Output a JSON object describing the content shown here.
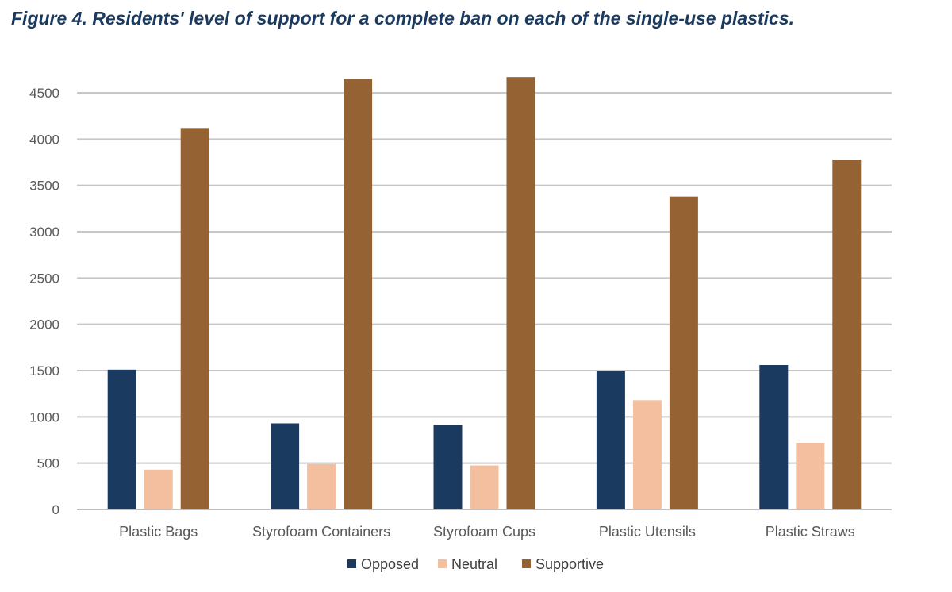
{
  "figure": {
    "title": "Figure 4. Residents' level of support for a complete ban on each of the single-use plastics."
  },
  "chart_data": {
    "type": "bar",
    "title": "Figure 4. Residents' level of support for a complete ban on each of the single-use plastics.",
    "xlabel": "",
    "ylabel": "",
    "categories": [
      "Plastic Bags",
      "Styrofoam Containers",
      "Styrofoam Cups",
      "Plastic Utensils",
      "Plastic Straws"
    ],
    "series": [
      {
        "name": "Opposed",
        "color": "#1a3a5f",
        "values": [
          1510,
          930,
          915,
          1495,
          1560
        ]
      },
      {
        "name": "Neutral",
        "color": "#f4bf9f",
        "values": [
          430,
          490,
          475,
          1180,
          720
        ]
      },
      {
        "name": "Supportive",
        "color": "#956333",
        "values": [
          4120,
          4650,
          4670,
          3380,
          3780
        ]
      }
    ],
    "ylim": [
      0,
      4500
    ],
    "yticks": [
      0,
      500,
      1000,
      1500,
      2000,
      2500,
      3000,
      3500,
      4000,
      4500
    ],
    "grid": true,
    "legend_position": "bottom"
  }
}
